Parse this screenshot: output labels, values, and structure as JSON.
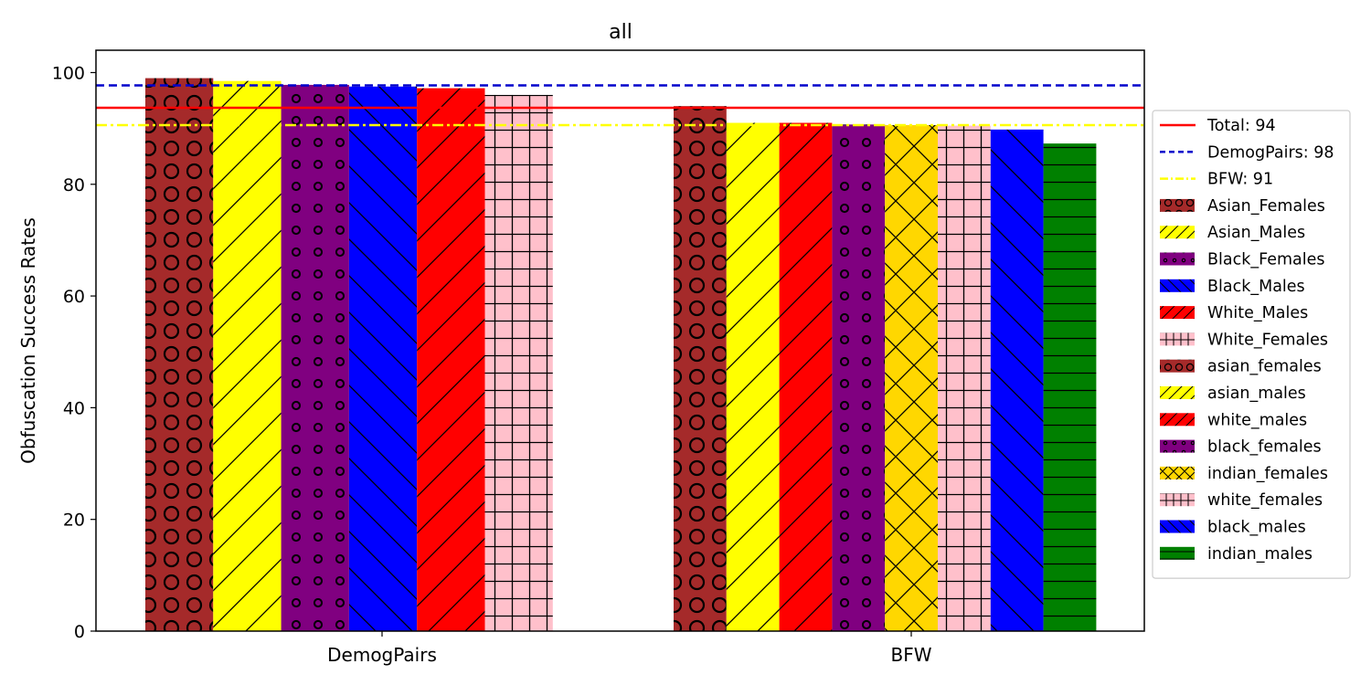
{
  "chart_data": {
    "type": "bar",
    "title": "all",
    "xlabel": "",
    "ylabel": "Obfuscation Success Rates",
    "ylim": [
      0,
      104
    ],
    "yticks": [
      0,
      20,
      40,
      60,
      80,
      100
    ],
    "grid": false,
    "legend_position": "right",
    "groups": [
      {
        "label": "DemogPairs",
        "bars": [
          {
            "name": "Asian_Females",
            "value": 99.0,
            "color": "#a52a2a",
            "hatch": "circles-large"
          },
          {
            "name": "Asian_Males",
            "value": 98.5,
            "color": "#ffff00",
            "hatch": "forward-diag"
          },
          {
            "name": "Black_Females",
            "value": 97.8,
            "color": "#800080",
            "hatch": "circles-small"
          },
          {
            "name": "Black_Males",
            "value": 97.5,
            "color": "#0000ff",
            "hatch": "back-diag"
          },
          {
            "name": "White_Males",
            "value": 97.2,
            "color": "#ff0000",
            "hatch": "forward-diag"
          },
          {
            "name": "White_Females",
            "value": 96.0,
            "color": "#ffc0cb",
            "hatch": "grid"
          }
        ]
      },
      {
        "label": "BFW",
        "bars": [
          {
            "name": "asian_females",
            "value": 94.0,
            "color": "#a52a2a",
            "hatch": "circles-large"
          },
          {
            "name": "asian_males",
            "value": 91.0,
            "color": "#ffff00",
            "hatch": "forward-diag"
          },
          {
            "name": "white_males",
            "value": 91.0,
            "color": "#ff0000",
            "hatch": "forward-diag"
          },
          {
            "name": "black_females",
            "value": 90.7,
            "color": "#800080",
            "hatch": "circles-small"
          },
          {
            "name": "indian_females",
            "value": 90.6,
            "color": "#ffd700",
            "hatch": "cross-diag"
          },
          {
            "name": "white_females",
            "value": 90.5,
            "color": "#ffc0cb",
            "hatch": "grid"
          },
          {
            "name": "black_males",
            "value": 89.8,
            "color": "#0000ff",
            "hatch": "back-diag"
          },
          {
            "name": "indian_males",
            "value": 87.3,
            "color": "#008000",
            "hatch": "horizontal"
          }
        ]
      }
    ],
    "reference_lines": [
      {
        "name": "Total: 94",
        "value": 93.7,
        "color": "#ff0000",
        "style": "solid"
      },
      {
        "name": "DemogPairs: 98",
        "value": 97.7,
        "color": "#0000cc",
        "style": "dashed"
      },
      {
        "name": "BFW: 91",
        "value": 90.6,
        "color": "#ffff00",
        "style": "dashdot"
      }
    ],
    "legend": [
      {
        "label": "Total: 94",
        "kind": "line",
        "color": "#ff0000",
        "style": "solid"
      },
      {
        "label": "DemogPairs: 98",
        "kind": "line",
        "color": "#0000cc",
        "style": "dashed"
      },
      {
        "label": "BFW: 91",
        "kind": "line",
        "color": "#ffff00",
        "style": "dashdot"
      },
      {
        "label": "Asian_Females",
        "kind": "patch",
        "color": "#a52a2a",
        "hatch": "circles-large"
      },
      {
        "label": "Asian_Males",
        "kind": "patch",
        "color": "#ffff00",
        "hatch": "forward-diag"
      },
      {
        "label": "Black_Females",
        "kind": "patch",
        "color": "#800080",
        "hatch": "circles-small"
      },
      {
        "label": "Black_Males",
        "kind": "patch",
        "color": "#0000ff",
        "hatch": "back-diag"
      },
      {
        "label": "White_Males",
        "kind": "patch",
        "color": "#ff0000",
        "hatch": "forward-diag"
      },
      {
        "label": "White_Females",
        "kind": "patch",
        "color": "#ffc0cb",
        "hatch": "grid"
      },
      {
        "label": "asian_females",
        "kind": "patch",
        "color": "#a52a2a",
        "hatch": "circles-large"
      },
      {
        "label": "asian_males",
        "kind": "patch",
        "color": "#ffff00",
        "hatch": "forward-diag"
      },
      {
        "label": "white_males",
        "kind": "patch",
        "color": "#ff0000",
        "hatch": "forward-diag"
      },
      {
        "label": "black_females",
        "kind": "patch",
        "color": "#800080",
        "hatch": "circles-small"
      },
      {
        "label": "indian_females",
        "kind": "patch",
        "color": "#ffd700",
        "hatch": "cross-diag"
      },
      {
        "label": "white_females",
        "kind": "patch",
        "color": "#ffc0cb",
        "hatch": "grid"
      },
      {
        "label": "black_males",
        "kind": "patch",
        "color": "#0000ff",
        "hatch": "back-diag"
      },
      {
        "label": "indian_males",
        "kind": "patch",
        "color": "#008000",
        "hatch": "horizontal"
      }
    ]
  }
}
